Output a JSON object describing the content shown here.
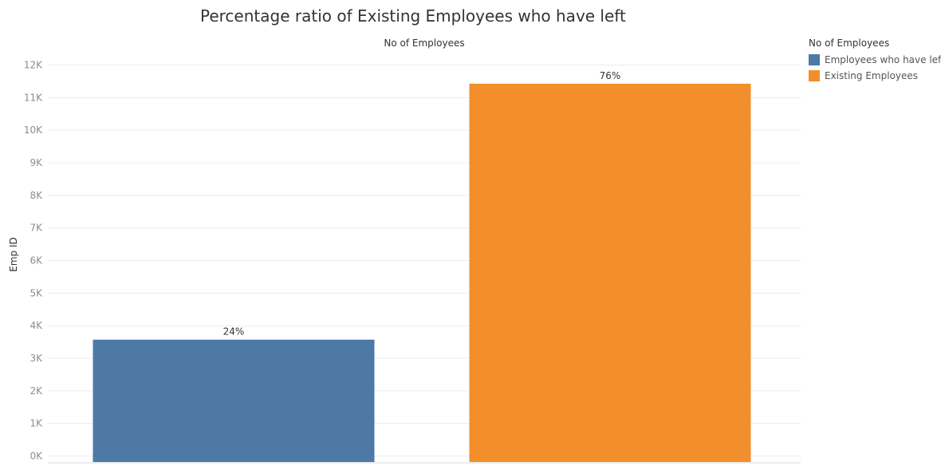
{
  "chart_data": {
    "type": "bar",
    "title": "Percentage ratio of Existing Employees who have left",
    "column_header": "No of Employees",
    "ylabel": "Emp ID",
    "ylim": [
      0,
      12400
    ],
    "y_ticks": [
      0,
      1000,
      2000,
      3000,
      4000,
      5000,
      6000,
      7000,
      8000,
      9000,
      10000,
      11000,
      12000
    ],
    "y_tick_labels": [
      "0K",
      "1K",
      "2K",
      "3K",
      "4K",
      "5K",
      "6K",
      "7K",
      "8K",
      "9K",
      "10K",
      "11K",
      "12K"
    ],
    "categories": [
      "Employees who have left",
      "Existing Employees"
    ],
    "values": [
      3571,
      11428
    ],
    "data_labels": [
      "24%",
      "76%"
    ],
    "colors": [
      "#4e79a7",
      "#f28e2b"
    ],
    "grid": true,
    "legend": {
      "title": "No of Employees",
      "position": "right",
      "items": [
        {
          "label": "Employees who have left",
          "color": "#4e79a7"
        },
        {
          "label": "Existing Employees",
          "color": "#f28e2b"
        }
      ]
    }
  }
}
